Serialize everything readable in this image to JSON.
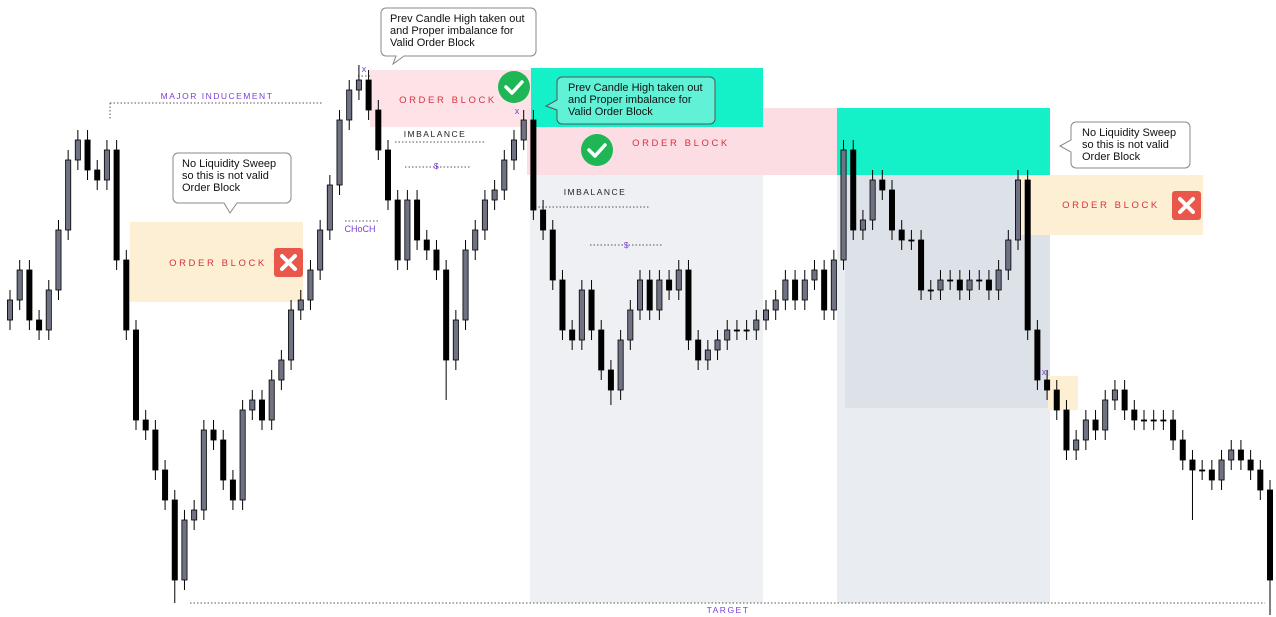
{
  "chart_data": {
    "type": "candlestick",
    "ylim": [
      0,
      620
    ],
    "colors": {
      "up": "#6f7282",
      "down": "#000000",
      "outline": "#000000"
    },
    "callouts": [
      [
        "Prev Candle High taken out",
        "and Proper imbalance for",
        "Valid Order Block"
      ],
      [
        "Prev Candle High taken out",
        "and Proper imbalance for",
        "Valid Order Block"
      ],
      [
        "No Liquidity Sweep",
        "so this is not valid",
        "Order Block"
      ],
      [
        "No Liquidity Sweep",
        "so this is not valid",
        "Order Block"
      ]
    ],
    "zone_labels": [
      "ORDER BLOCK",
      "ORDER BLOCK",
      "ORDER BLOCK",
      "ORDER BLOCK"
    ],
    "level_labels": [
      "MAJOR INDUCEMENT",
      "IMBALANCE",
      "IMBALANCE",
      "$",
      "$",
      "CHoCH",
      "TARGET"
    ],
    "sweep_marks": [
      "x",
      "x",
      "x"
    ],
    "candles": [
      [
        300,
        330,
        290,
        320
      ],
      [
        320,
        360,
        310,
        350
      ],
      [
        350,
        360,
        290,
        300
      ],
      [
        300,
        310,
        280,
        290
      ],
      [
        290,
        340,
        280,
        330
      ],
      [
        330,
        400,
        320,
        390
      ],
      [
        390,
        470,
        380,
        460
      ],
      [
        460,
        490,
        450,
        480
      ],
      [
        480,
        490,
        440,
        450
      ],
      [
        450,
        460,
        430,
        440
      ],
      [
        440,
        480,
        430,
        470
      ],
      [
        470,
        480,
        350,
        360
      ],
      [
        360,
        370,
        280,
        290
      ],
      [
        290,
        300,
        190,
        200
      ],
      [
        200,
        210,
        180,
        190
      ],
      [
        190,
        200,
        140,
        150
      ],
      [
        150,
        160,
        110,
        120
      ],
      [
        120,
        130,
        17,
        40
      ],
      [
        40,
        110,
        30,
        100
      ],
      [
        100,
        120,
        90,
        110
      ],
      [
        110,
        200,
        100,
        190
      ],
      [
        190,
        200,
        170,
        180
      ],
      [
        180,
        190,
        130,
        140
      ],
      [
        140,
        150,
        110,
        120
      ],
      [
        120,
        220,
        110,
        210
      ],
      [
        210,
        230,
        200,
        220
      ],
      [
        220,
        230,
        190,
        200
      ],
      [
        200,
        250,
        190,
        240
      ],
      [
        240,
        270,
        230,
        260
      ],
      [
        260,
        320,
        250,
        310
      ],
      [
        310,
        330,
        300,
        320
      ],
      [
        320,
        360,
        310,
        350
      ],
      [
        350,
        400,
        340,
        390
      ],
      [
        390,
        445,
        380,
        435
      ],
      [
        435,
        510,
        425,
        500
      ],
      [
        500,
        540,
        490,
        530
      ],
      [
        530,
        555,
        520,
        540
      ],
      [
        540,
        550,
        500,
        510
      ],
      [
        510,
        520,
        460,
        470
      ],
      [
        470,
        480,
        410,
        420
      ],
      [
        420,
        430,
        350,
        360
      ],
      [
        360,
        430,
        350,
        420
      ],
      [
        420,
        430,
        370,
        380
      ],
      [
        380,
        390,
        360,
        370
      ],
      [
        370,
        380,
        340,
        350
      ],
      [
        350,
        360,
        220,
        260
      ],
      [
        260,
        310,
        250,
        300
      ],
      [
        300,
        380,
        290,
        370
      ],
      [
        370,
        400,
        360,
        390
      ],
      [
        390,
        430,
        380,
        420
      ],
      [
        420,
        440,
        410,
        430
      ],
      [
        430,
        470,
        420,
        460
      ],
      [
        460,
        490,
        450,
        480
      ],
      [
        480,
        510,
        470,
        500
      ],
      [
        500,
        510,
        400,
        410
      ],
      [
        410,
        420,
        380,
        390
      ],
      [
        390,
        400,
        330,
        340
      ],
      [
        340,
        350,
        280,
        290
      ],
      [
        290,
        300,
        270,
        280
      ],
      [
        280,
        340,
        270,
        330
      ],
      [
        330,
        340,
        280,
        290
      ],
      [
        290,
        300,
        240,
        250
      ],
      [
        250,
        260,
        215,
        230
      ],
      [
        230,
        290,
        220,
        280
      ],
      [
        280,
        320,
        270,
        310
      ],
      [
        310,
        350,
        300,
        340
      ],
      [
        340,
        350,
        300,
        310
      ],
      [
        310,
        350,
        300,
        340
      ],
      [
        340,
        350,
        320,
        330
      ],
      [
        330,
        360,
        320,
        350
      ],
      [
        350,
        360,
        270,
        280
      ],
      [
        280,
        290,
        250,
        260
      ],
      [
        260,
        280,
        250,
        270
      ],
      [
        270,
        290,
        260,
        280
      ],
      [
        280,
        300,
        270,
        290
      ],
      [
        290,
        300,
        280,
        290
      ],
      [
        290,
        300,
        280,
        290
      ],
      [
        290,
        310,
        280,
        300
      ],
      [
        300,
        320,
        290,
        310
      ],
      [
        310,
        330,
        300,
        320
      ],
      [
        320,
        350,
        310,
        340
      ],
      [
        340,
        350,
        310,
        320
      ],
      [
        320,
        350,
        310,
        340
      ],
      [
        340,
        360,
        330,
        350
      ],
      [
        350,
        360,
        300,
        310
      ],
      [
        310,
        370,
        300,
        360
      ],
      [
        360,
        480,
        350,
        470
      ],
      [
        470,
        480,
        380,
        390
      ],
      [
        390,
        410,
        380,
        400
      ],
      [
        400,
        450,
        390,
        440
      ],
      [
        440,
        450,
        420,
        430
      ],
      [
        430,
        440,
        380,
        390
      ],
      [
        390,
        400,
        370,
        380
      ],
      [
        380,
        390,
        370,
        380
      ],
      [
        380,
        390,
        320,
        330
      ],
      [
        330,
        340,
        320,
        330
      ],
      [
        330,
        350,
        320,
        340
      ],
      [
        340,
        350,
        330,
        340
      ],
      [
        340,
        350,
        320,
        330
      ],
      [
        330,
        350,
        320,
        340
      ],
      [
        340,
        350,
        330,
        340
      ],
      [
        340,
        350,
        320,
        330
      ],
      [
        330,
        360,
        320,
        350
      ],
      [
        350,
        390,
        340,
        380
      ],
      [
        380,
        450,
        370,
        440
      ],
      [
        440,
        450,
        280,
        290
      ],
      [
        290,
        300,
        230,
        240
      ],
      [
        240,
        250,
        220,
        230
      ],
      [
        230,
        240,
        200,
        210
      ],
      [
        210,
        220,
        160,
        170
      ],
      [
        170,
        190,
        160,
        180
      ],
      [
        180,
        210,
        170,
        200
      ],
      [
        200,
        210,
        180,
        190
      ],
      [
        190,
        230,
        180,
        220
      ],
      [
        220,
        240,
        210,
        230
      ],
      [
        230,
        240,
        200,
        210
      ],
      [
        210,
        220,
        190,
        200
      ],
      [
        200,
        210,
        190,
        200
      ],
      [
        200,
        210,
        190,
        200
      ],
      [
        200,
        210,
        190,
        200
      ],
      [
        200,
        210,
        170,
        180
      ],
      [
        180,
        190,
        150,
        160
      ],
      [
        160,
        170,
        100,
        150
      ],
      [
        150,
        160,
        140,
        150
      ],
      [
        150,
        160,
        130,
        140
      ],
      [
        140,
        170,
        130,
        160
      ],
      [
        160,
        180,
        150,
        170
      ],
      [
        170,
        180,
        150,
        160
      ],
      [
        160,
        170,
        140,
        150
      ],
      [
        150,
        160,
        120,
        130
      ],
      [
        130,
        140,
        5,
        40
      ]
    ]
  }
}
